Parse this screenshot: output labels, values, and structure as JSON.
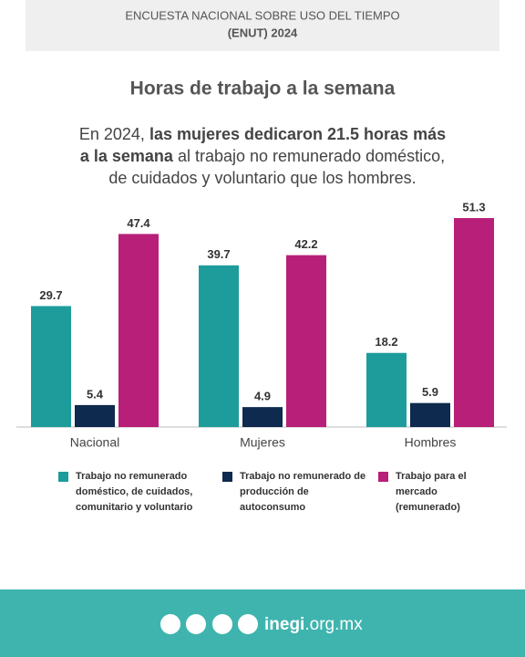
{
  "header": {
    "line1": "ENCUESTA NACIONAL SOBRE USO DEL TIEMPO",
    "line2": "(ENUT) 2024"
  },
  "chart_data": {
    "type": "bar",
    "title": "Horas de trabajo a la semana",
    "subtitle": [
      [
        {
          "text": "En 2024, "
        },
        {
          "text": "las mujeres dedicaron 21.5 horas más",
          "bold": true
        }
      ],
      [
        {
          "text": "a la semana",
          "bold": true
        },
        {
          "text": " al trabajo no remunerado doméstico,"
        }
      ],
      [
        {
          "text": "de cuidados y voluntario que los hombres."
        }
      ]
    ],
    "categories": [
      "Nacional",
      "Mujeres",
      "Hombres"
    ],
    "series": [
      {
        "name": "Trabajo no remunerado doméstico, de cuidados, comunitario y voluntario",
        "color": "#1d9c9b",
        "values": [
          29.7,
          39.7,
          18.2
        ]
      },
      {
        "name": "Trabajo no remunerado de producción de autoconsumo",
        "color": "#0e2a4e",
        "values": [
          5.4,
          4.9,
          5.9
        ]
      },
      {
        "name": "Trabajo para el mercado (remunerado)",
        "color": "#b81f78",
        "values": [
          47.4,
          42.2,
          51.3
        ]
      }
    ]
  },
  "footer": {
    "site_bold": "inegi",
    "site_rest": ".org.mx"
  }
}
